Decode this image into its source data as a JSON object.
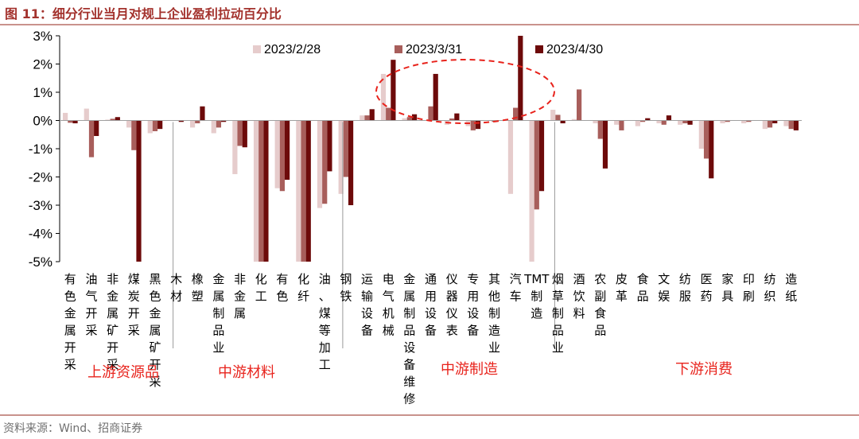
{
  "figure": {
    "title": "图 11：细分行业当月对规上企业盈利拉动百分比",
    "source": "资料来源：Wind、招商证券"
  },
  "chart_data": {
    "type": "bar",
    "y_tick_labels": [
      "3%",
      "2%",
      "1%",
      "0%",
      "-1%",
      "-2%",
      "-3%",
      "-4%",
      "-5%"
    ],
    "ylim": [
      -5,
      3
    ],
    "categories": [
      "有色金属开采",
      "油气开采",
      "非金属矿开采",
      "煤炭开采",
      "黑色金属矿开采",
      "木材",
      "橡塑",
      "金属制品业",
      "非金属",
      "化工",
      "有色",
      "化纤",
      "油、煤等加工",
      "钢铁",
      "运输设备",
      "电气机械",
      "金属制品设备维修",
      "通用设备",
      "仪器仪表",
      "专用设备",
      "其他制造业",
      "汽车",
      "TMT制造",
      "烟草制品业",
      "酒饮料",
      "农副食品",
      "皮革",
      "食品",
      "文娱",
      "纺服",
      "医药",
      "家具",
      "印刷",
      "纺织",
      "造纸"
    ],
    "series": [
      {
        "name": "2023/2/28",
        "color": "#e6cccc",
        "values": [
          0.27,
          0.42,
          0.03,
          -0.25,
          -0.45,
          0.0,
          -0.25,
          -0.45,
          -1.9,
          -5.0,
          -2.4,
          -5.0,
          -3.1,
          -2.6,
          0.18,
          1.65,
          0.08,
          0.0,
          -0.15,
          -0.2,
          0.0,
          -2.6,
          -5.0,
          0.38,
          0.05,
          -0.1,
          -0.15,
          -0.2,
          -0.1,
          -0.15,
          -1.0,
          -0.1,
          -0.1,
          -0.3,
          -0.2
        ]
      },
      {
        "name": "2023/3/31",
        "color": "#a85e5b",
        "values": [
          -0.08,
          -1.3,
          0.06,
          -1.05,
          -0.38,
          0.0,
          -0.1,
          -0.25,
          -0.9,
          -5.0,
          -2.5,
          -5.0,
          -2.95,
          -2.0,
          0.18,
          0.45,
          0.12,
          0.5,
          0.07,
          -0.35,
          -0.05,
          0.45,
          -3.15,
          0.2,
          1.1,
          -0.65,
          -0.35,
          -0.05,
          -0.15,
          -0.1,
          -1.35,
          -0.05,
          -0.05,
          -0.25,
          -0.3
        ]
      },
      {
        "name": "2023/4/30",
        "color": "#6d0a0a",
        "values": [
          -0.1,
          -0.55,
          0.12,
          -5.0,
          -0.3,
          -0.05,
          0.5,
          -0.05,
          -0.95,
          -5.0,
          -2.1,
          -5.0,
          -1.8,
          -3.0,
          0.4,
          2.15,
          0.22,
          1.65,
          0.25,
          -0.3,
          0.0,
          3.0,
          -2.5,
          -0.1,
          0.0,
          -1.7,
          0.0,
          0.08,
          0.18,
          -0.15,
          -2.05,
          0.0,
          0.0,
          -0.1,
          -0.35
        ]
      }
    ],
    "group_labels": [
      "上游资源品",
      "中游材料",
      "中游制造",
      "下游消费"
    ],
    "legend_placement": "top",
    "grid": false,
    "annotation": "red dashed ellipse highlighting 电气机械 through 汽车"
  }
}
